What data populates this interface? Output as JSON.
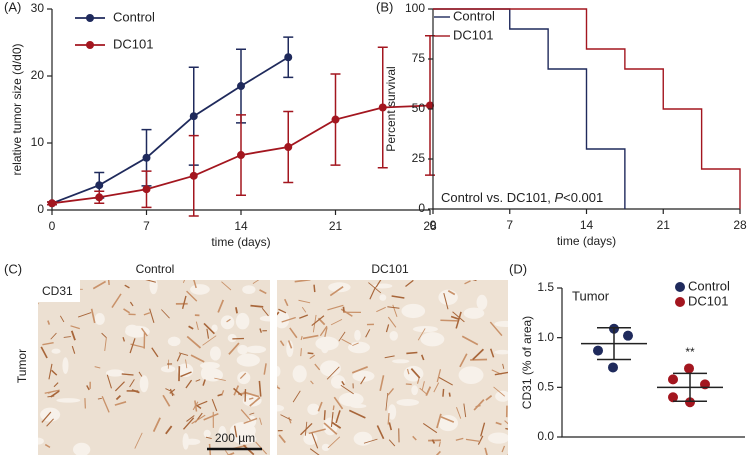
{
  "chart_data": [
    {
      "type": "line",
      "panel": "(A)",
      "xlabel": "time (days)",
      "ylabel": "relative tumor size (d/d0)",
      "x": [
        0,
        3.5,
        7,
        10.5,
        14,
        17.5,
        21,
        24.5,
        28
      ],
      "xlim": [
        0,
        28
      ],
      "xticks": [
        0,
        7,
        14,
        21,
        28
      ],
      "ylim": [
        0,
        30
      ],
      "yticks": [
        0,
        10,
        20,
        30
      ],
      "series": [
        {
          "name": "Control",
          "color": "#1f2a5c",
          "values": [
            1,
            3.7,
            7.8,
            14,
            18.5,
            22.8,
            null,
            null,
            null
          ],
          "errors": [
            0.2,
            1.9,
            4.2,
            7.3,
            5.5,
            3,
            null,
            null,
            null
          ]
        },
        {
          "name": "DC101",
          "color": "#a3161f",
          "values": [
            1,
            1.9,
            3.1,
            5.1,
            8.2,
            9.4,
            13.5,
            15.3,
            15.6
          ],
          "errors": [
            0.2,
            0.9,
            2.7,
            6,
            6,
            5.3,
            6.8,
            9,
            10.4
          ]
        }
      ]
    },
    {
      "type": "step",
      "panel": "(B)",
      "xlabel": "time (days)",
      "ylabel": "Percent survival",
      "annotation": [
        "Control vs. DC101, ",
        "P",
        "<0.001"
      ],
      "xlim": [
        0,
        28
      ],
      "xticks": [
        0,
        7,
        14,
        21,
        28
      ],
      "ylim": [
        0,
        100
      ],
      "yticks": [
        0,
        25,
        50,
        75,
        100
      ],
      "series": [
        {
          "name": "Control",
          "color": "#1f2a5c",
          "x": [
            0,
            7,
            10.5,
            14,
            17.5
          ],
          "values": [
            100,
            90,
            70,
            30,
            0
          ]
        },
        {
          "name": "DC101",
          "color": "#a3161f",
          "x": [
            0,
            14,
            17.5,
            21,
            24.5,
            28
          ],
          "values": [
            100,
            80,
            70,
            50,
            20,
            0
          ]
        }
      ]
    },
    {
      "type": "image",
      "panel": "(C)",
      "columns": [
        "Control",
        "DC101"
      ],
      "stain": "CD31",
      "row": "Tumor",
      "scale_bar": "200 µm"
    },
    {
      "type": "dot",
      "panel": "(D)",
      "ylabel": "CD31 (% of area)",
      "annotation": "Tumor",
      "significance": "**",
      "ylim": [
        0,
        1.5
      ],
      "yticks": [
        {
          "value": 0,
          "label": "0.0"
        },
        {
          "value": 0.5,
          "label": "0.5"
        },
        {
          "value": 1,
          "label": "1.0"
        },
        {
          "value": 1.5,
          "label": "1.5"
        }
      ],
      "series": [
        {
          "name": "Control",
          "color": "#1f2a5c",
          "values": [
            1.09,
            1.02,
            0.87,
            0.7
          ],
          "mean": 0.94,
          "sd": 0.16
        },
        {
          "name": "DC101",
          "color": "#a3161f",
          "values": [
            0.69,
            0.58,
            0.53,
            0.4,
            0.35
          ],
          "mean": 0.5,
          "sd": 0.14
        }
      ]
    }
  ]
}
